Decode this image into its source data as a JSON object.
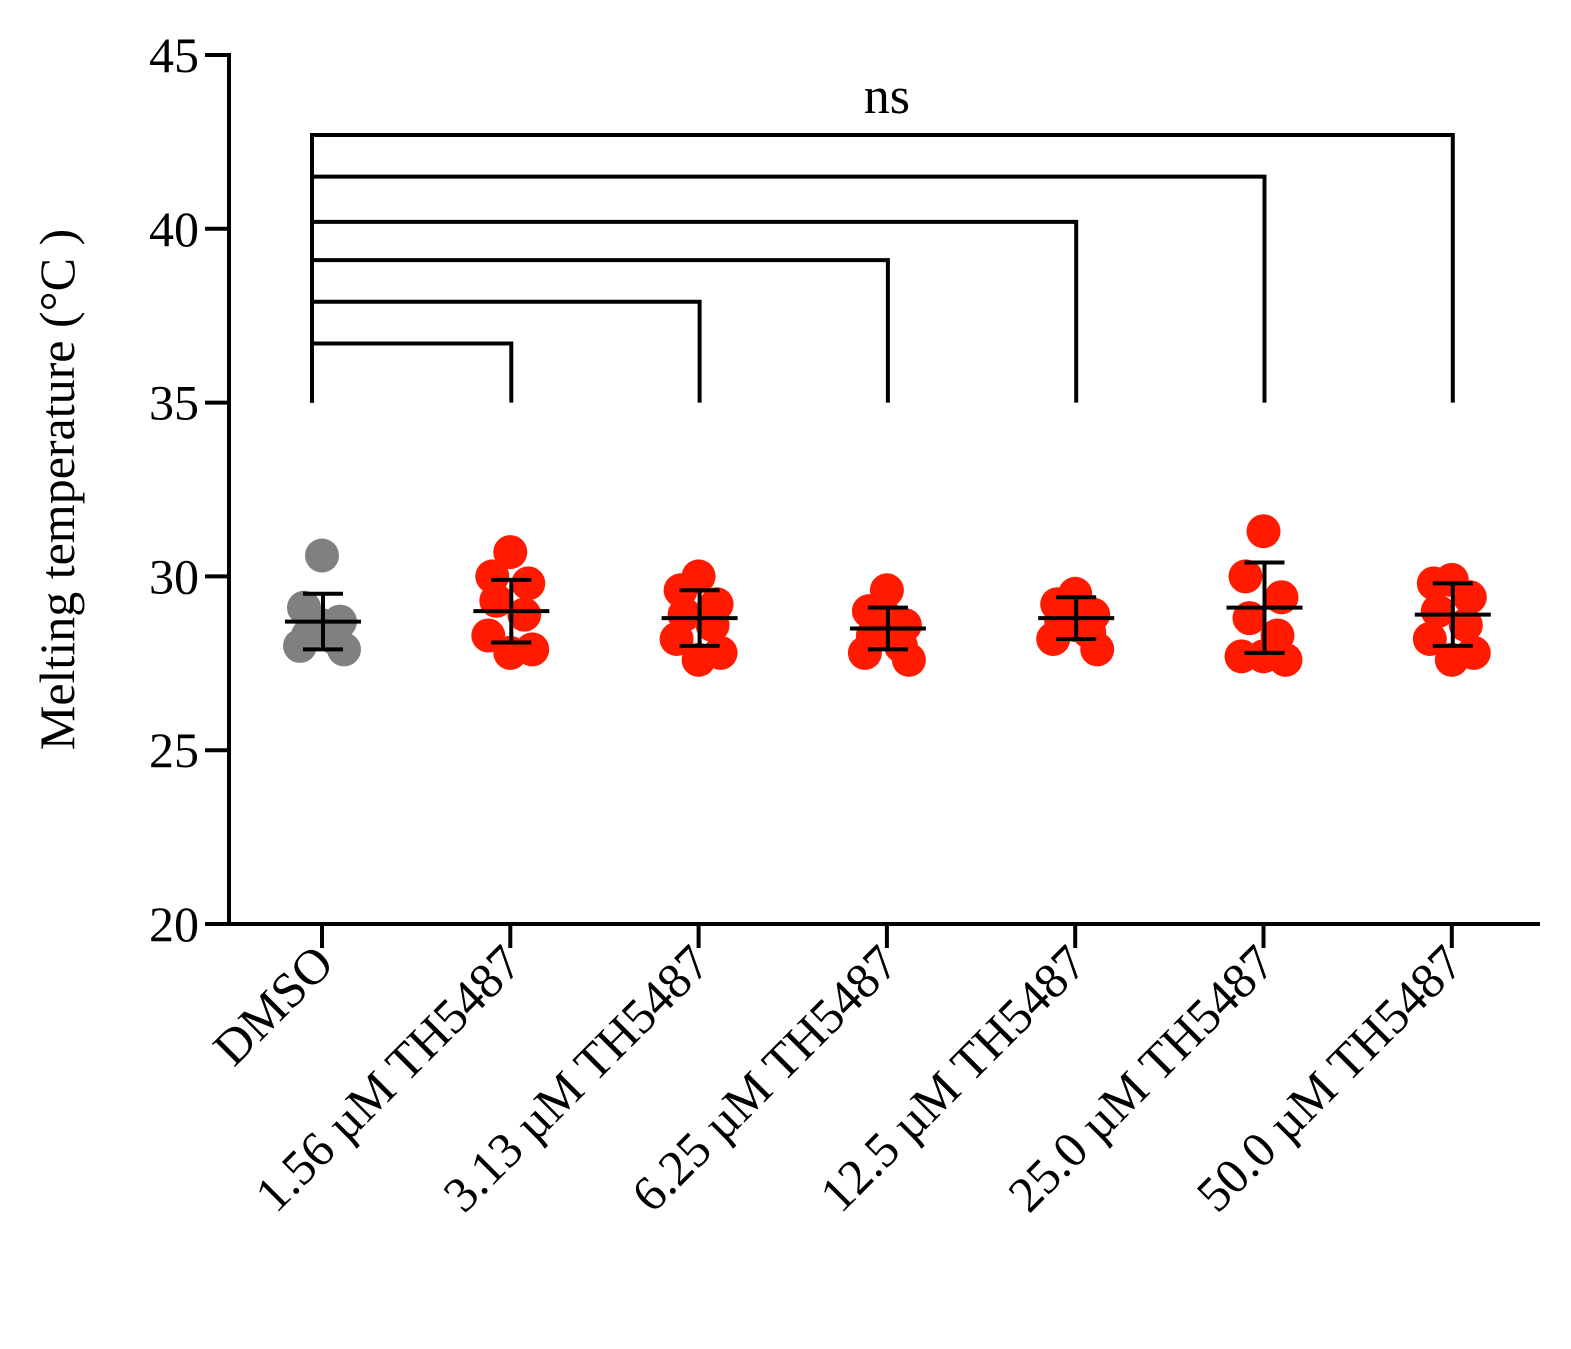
{
  "chart_data": {
    "type": "scatter",
    "ylabel": "Melting temperature (°C )",
    "xlabel": "",
    "ylim": [
      20,
      45
    ],
    "yticks": [
      20,
      25,
      30,
      35,
      40,
      45
    ],
    "yticklabels": [
      "20",
      "25",
      "30",
      "35",
      "40",
      "45"
    ],
    "categories": [
      "DMSO",
      "1.56 µM TH5487",
      "3.13 µM TH5487",
      "6.25 µM TH5487",
      "12.5 µM TH5487",
      "25.0 µM TH5487",
      "50.0 µM TH5487"
    ],
    "colors": [
      "#808080",
      "#ff1a00",
      "#ff1a00",
      "#ff1a00",
      "#ff1a00",
      "#ff1a00",
      "#ff1a00"
    ],
    "points": [
      [
        30.6,
        29.1,
        28.7,
        28.3,
        28.2,
        28.0,
        27.9,
        28.6
      ],
      [
        30.7,
        30.0,
        29.8,
        29.3,
        28.9,
        28.3,
        27.9,
        27.8
      ],
      [
        30.0,
        29.6,
        29.2,
        28.9,
        28.6,
        28.2,
        27.8,
        27.6
      ],
      [
        29.6,
        29.0,
        28.6,
        28.3,
        28.0,
        27.8,
        27.6,
        28.8
      ],
      [
        29.5,
        29.2,
        28.9,
        28.7,
        28.4,
        28.2,
        27.9,
        28.6
      ],
      [
        31.3,
        30.0,
        29.4,
        28.8,
        28.3,
        27.7,
        27.6,
        27.7
      ],
      [
        29.9,
        29.8,
        29.4,
        29.0,
        28.6,
        28.2,
        27.8,
        27.6
      ]
    ],
    "means": [
      28.7,
      29.0,
      28.8,
      28.5,
      28.8,
      29.1,
      28.9
    ],
    "sd_upper": [
      29.5,
      29.9,
      29.6,
      29.1,
      29.4,
      30.4,
      29.8
    ],
    "sd_lower": [
      27.9,
      28.1,
      28.0,
      27.9,
      28.2,
      27.8,
      28.0
    ],
    "comparisons": [
      {
        "from": 0,
        "to": 1,
        "level": 36.7
      },
      {
        "from": 0,
        "to": 2,
        "level": 37.9
      },
      {
        "from": 0,
        "to": 3,
        "level": 39.1
      },
      {
        "from": 0,
        "to": 4,
        "level": 40.2
      },
      {
        "from": 0,
        "to": 5,
        "level": 41.5
      },
      {
        "from": 0,
        "to": 6,
        "level": 42.7
      }
    ],
    "bracket_base": 35.0,
    "annotation": "ns",
    "grid": false,
    "legend": "none"
  }
}
